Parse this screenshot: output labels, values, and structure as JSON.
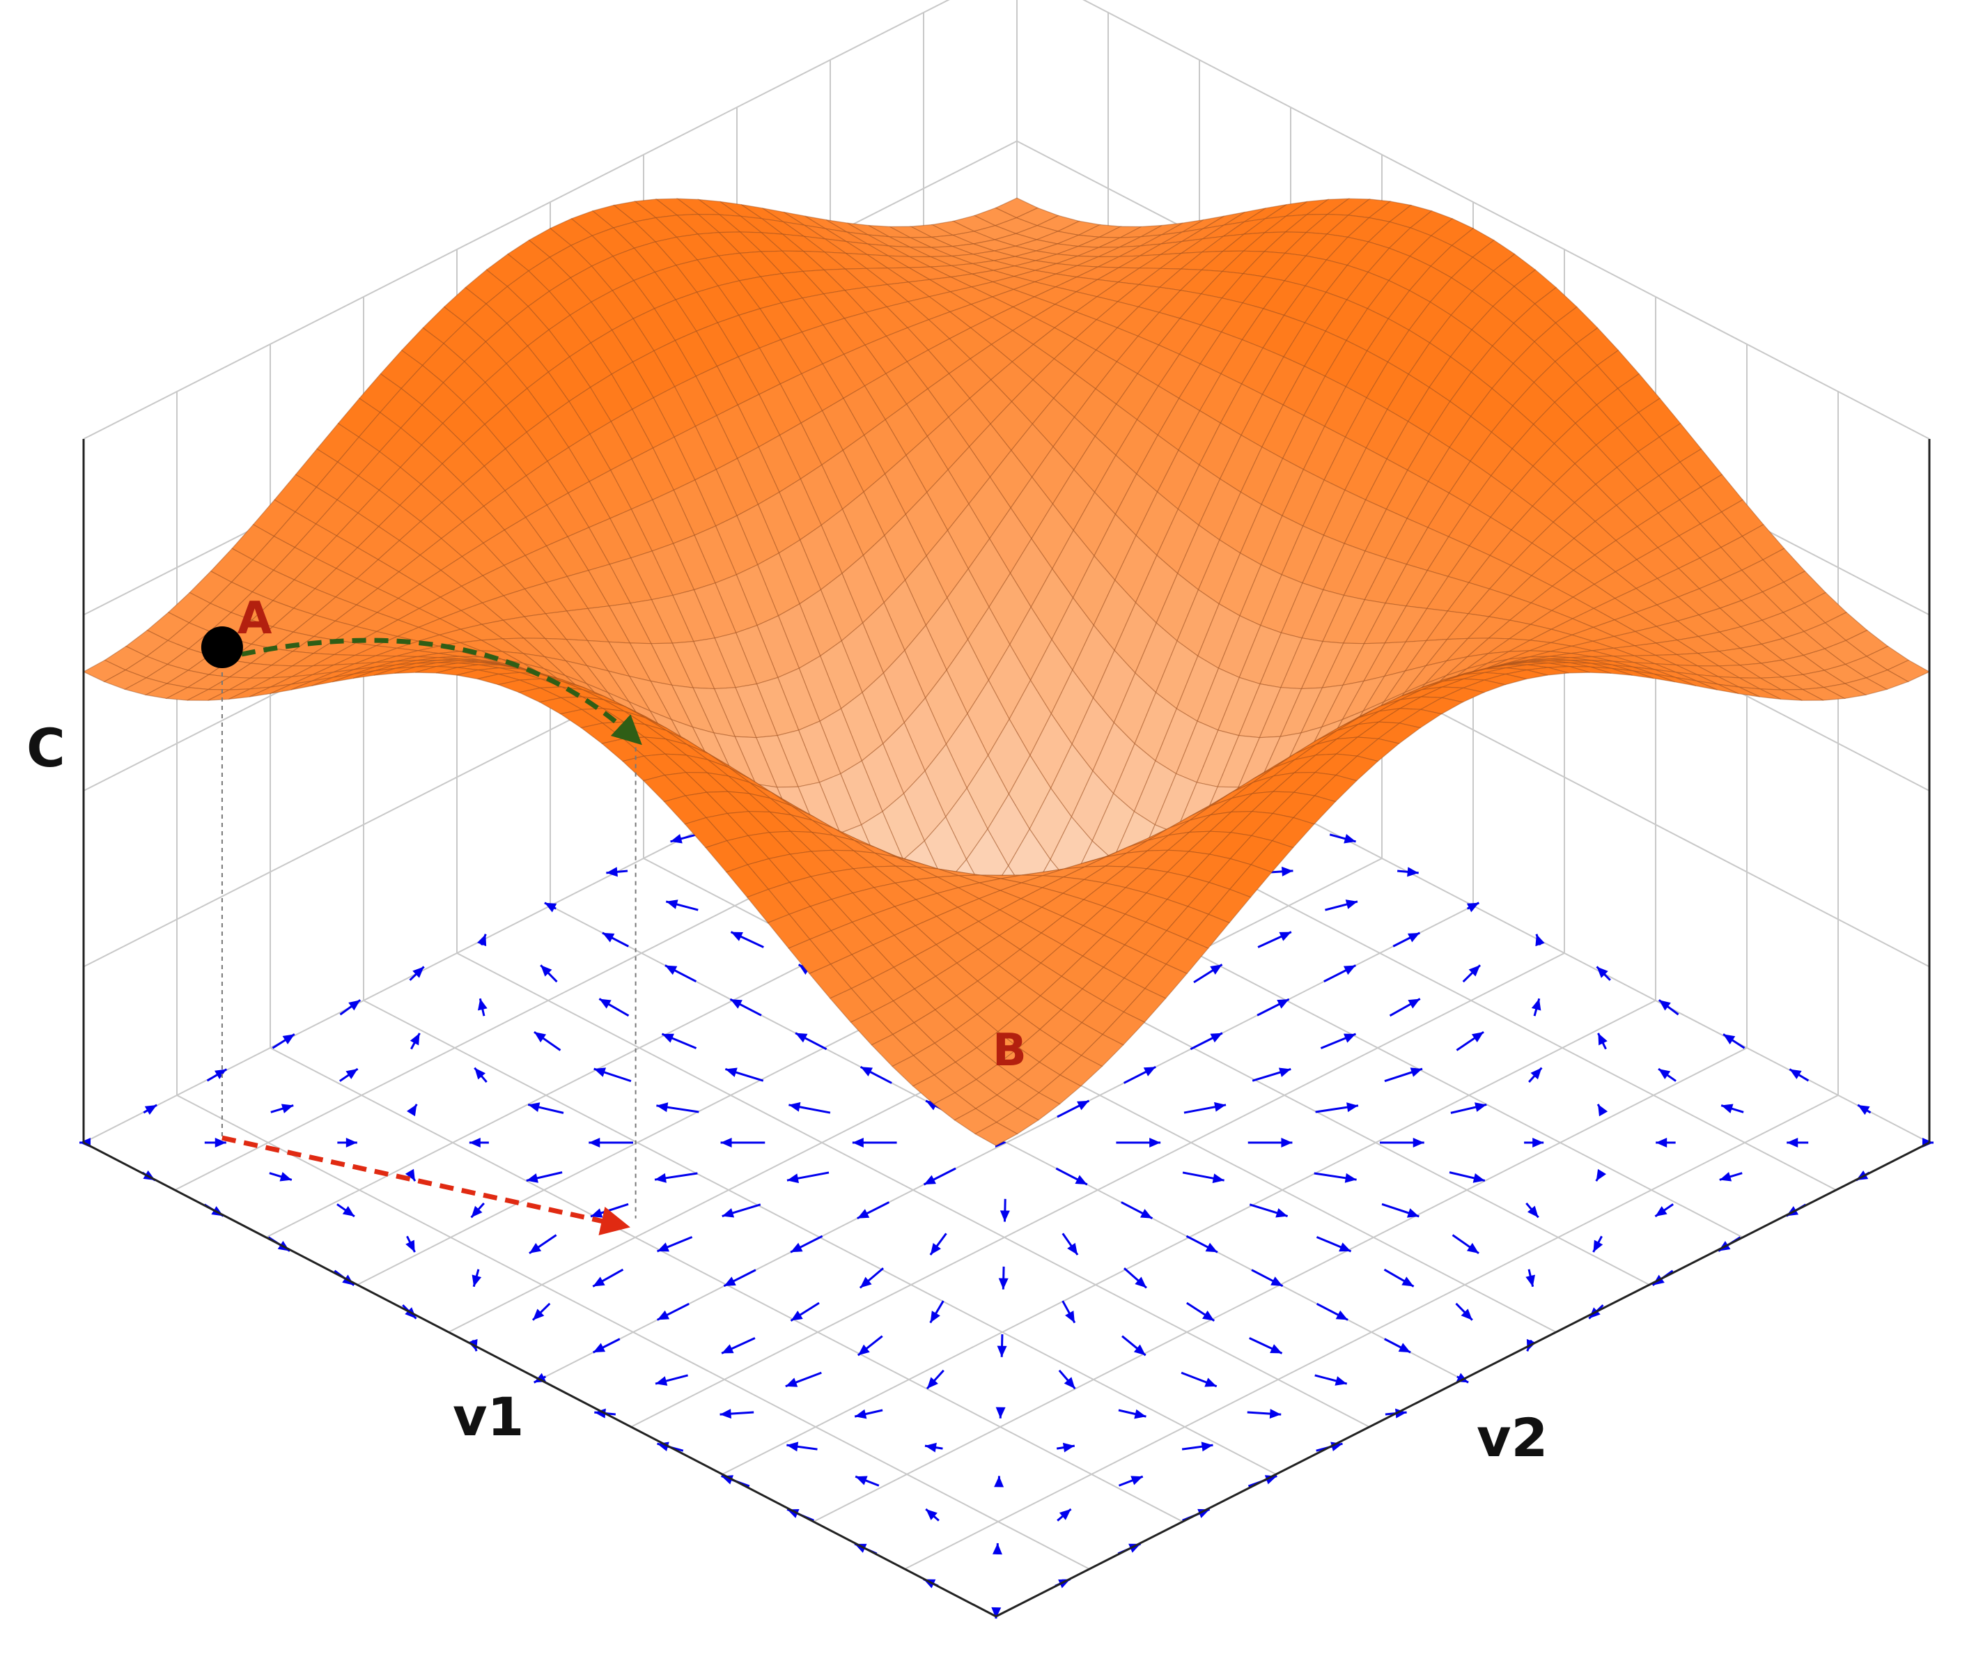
{
  "axes": {
    "v1_label": "v1",
    "v2_label": "v2",
    "c_label": "C"
  },
  "points": {
    "a_label": "A",
    "b_label": "B"
  },
  "colors": {
    "surface_top": "#ff7a1a",
    "surface_bottom": "#fbe9de",
    "mesh_line": "#9a4a18",
    "gradient_arrow": "#0000ee",
    "path_arrow": "#2f5e16",
    "projection_arrow": "#e02a12",
    "point_label": "#b3200f",
    "grid": "#c8c8c8",
    "box_edge": "#222222"
  },
  "icons": {
    "point_marker": "black-dot",
    "descent_path": "green-dashed-arrow",
    "projected_step": "red-dashed-arrow",
    "vector_field": "blue-arrow-field"
  }
}
